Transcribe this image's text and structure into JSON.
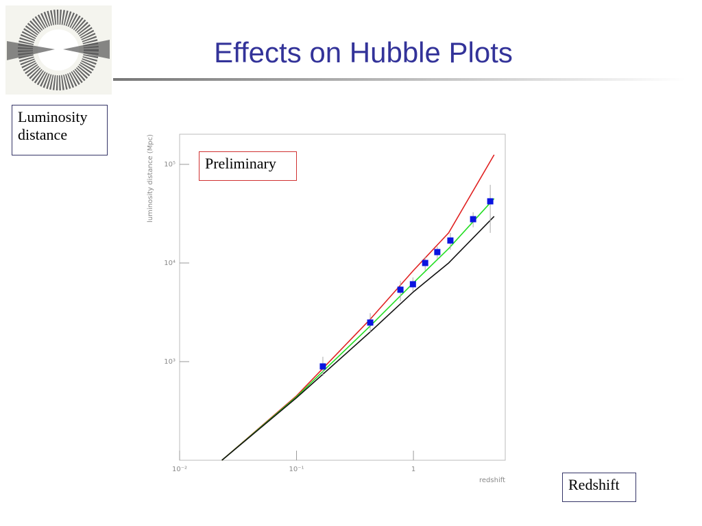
{
  "slide": {
    "title": "Effects on Hubble Plots",
    "y_box": "Luminosity distance",
    "x_box": "Redshift"
  },
  "chart_data": {
    "type": "scatter",
    "xscale": "log",
    "yscale": "log",
    "xlabel": "redshift",
    "ylabel": "luminosity distance (Mpc)",
    "annotation": "Preliminary",
    "xlim": [
      0.01,
      6.1
    ],
    "ylim": [
      100,
      202000
    ],
    "xticks": [
      {
        "value": 0.01,
        "label": "10⁻²"
      },
      {
        "value": 0.1,
        "label": "10⁻¹"
      },
      1
    ],
    "yticks": [
      {
        "value": 1000,
        "label": "10³"
      },
      {
        "value": 10000,
        "label": "10⁴"
      },
      {
        "value": 100000,
        "label": "10⁵"
      }
    ],
    "curves": {
      "x": [
        0.023,
        0.1,
        0.427,
        1,
        2,
        4.9
      ],
      "series": [
        {
          "color": "#e02020",
          "values": [
            100,
            450,
            2690,
            8400,
            20200,
            125000
          ]
        },
        {
          "color": "#22dd22",
          "values": [
            100,
            440,
            2300,
            6300,
            14000,
            45000
          ]
        },
        {
          "color": "#111111",
          "values": [
            100,
            430,
            2000,
            5100,
            10000,
            29700
          ]
        }
      ]
    },
    "points": {
      "color": "#0a14e0",
      "x": [
        0.168,
        0.427,
        0.774,
        0.99,
        1.26,
        1.6,
        2.07,
        3.24,
        4.54
      ],
      "values": [
        894,
        2490,
        5360,
        6090,
        10000,
        12900,
        16900,
        27800,
        42200
      ],
      "lower": [
        714,
        1990,
        4080,
        5190,
        8400,
        11000,
        13600,
        23000,
        20200
      ],
      "upper": [
        1120,
        3100,
        6590,
        7140,
        11550,
        14700,
        20200,
        32700,
        62000
      ]
    }
  }
}
